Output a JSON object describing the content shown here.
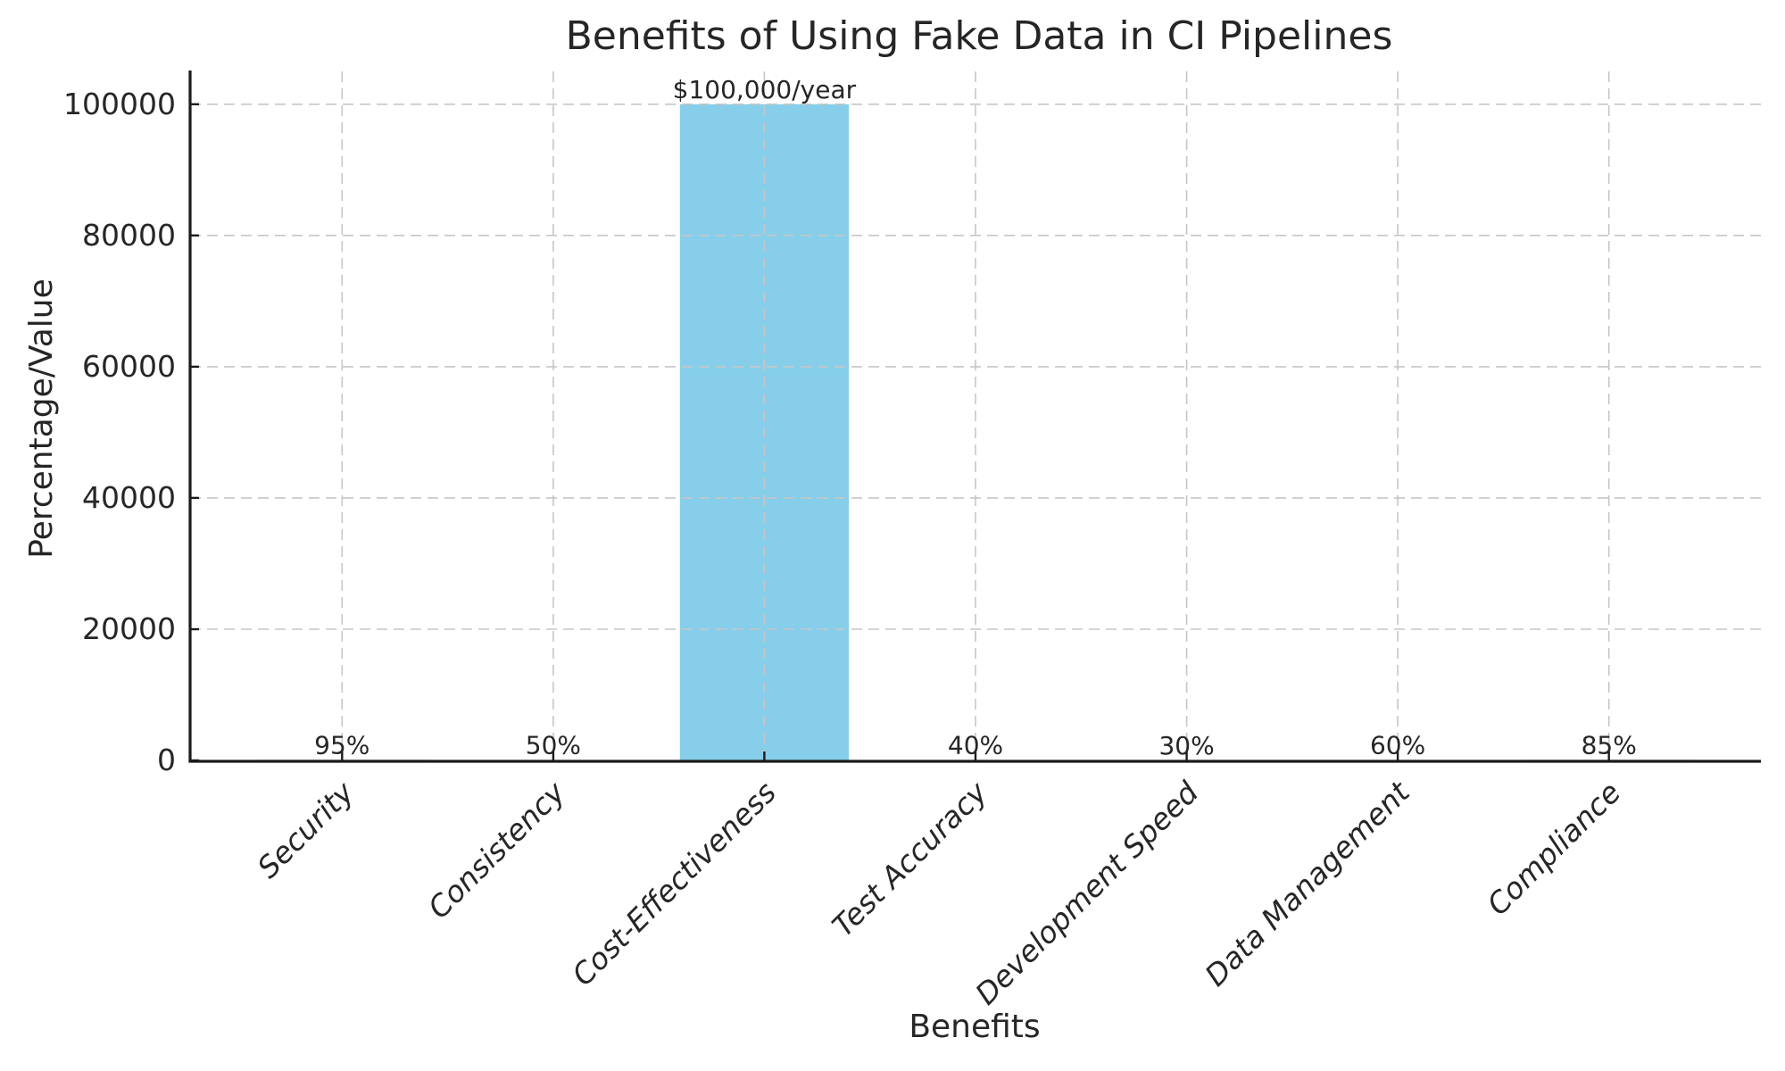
{
  "chart_data": {
    "type": "bar",
    "title": "Benefits of Using Fake Data in CI Pipelines",
    "xlabel": "Benefits",
    "ylabel": "Percentage/Value",
    "categories": [
      "Security",
      "Consistency",
      "Cost-Effectiveness",
      "Test Accuracy",
      "Development Speed",
      "Data Management",
      "Compliance"
    ],
    "values": [
      95,
      50,
      100000,
      40,
      30,
      60,
      85
    ],
    "bar_value_labels": [
      "95%",
      "50%",
      "$100,000/year",
      "40%",
      "30%",
      "60%",
      "85%"
    ],
    "yticks": [
      0,
      20000,
      40000,
      60000,
      80000,
      100000
    ],
    "ytick_labels": [
      "0",
      "20000",
      "40000",
      "60000",
      "80000",
      "100000"
    ],
    "ylim": [
      0,
      105000
    ],
    "bar_color": "#87CEEB",
    "grid": {
      "visible": true,
      "style": "dashed",
      "color": "#c6c6c6"
    },
    "legend": {
      "visible": false
    },
    "x_tick_rotation_deg": 45
  }
}
